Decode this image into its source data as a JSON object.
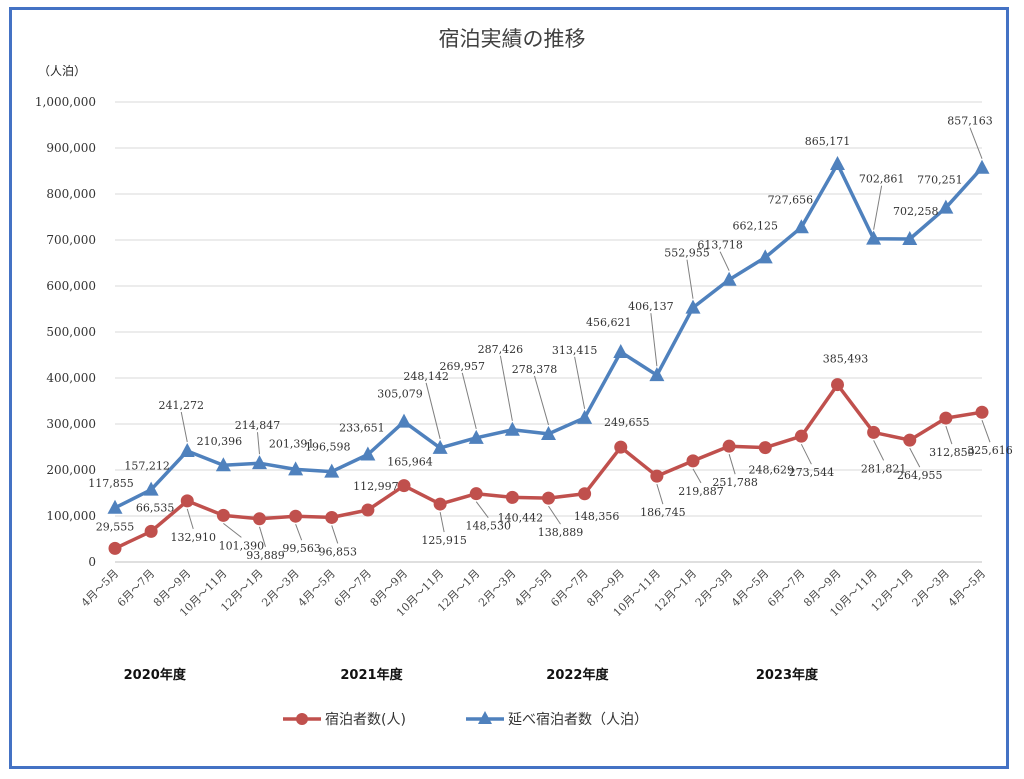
{
  "chart_data": {
    "type": "line",
    "title": "宿泊実績の推移",
    "ylabel": "（人泊）",
    "ylim": [
      0,
      1000000
    ],
    "yticks": [
      "0",
      "100,000",
      "200,000",
      "300,000",
      "400,000",
      "500,000",
      "600,000",
      "700,000",
      "800,000",
      "900,000",
      "1,000,000"
    ],
    "grid": true,
    "legend_position": "bottom",
    "categories": [
      "4月～5月",
      "6月～7月",
      "8月～9月",
      "10月～11月",
      "12月～1月",
      "2月～3月",
      "4月～5月",
      "6月～7月",
      "8月～9月",
      "10月～11月",
      "12月～1月",
      "2月～3月",
      "4月～5月",
      "6月～7月",
      "8月～9月",
      "10月～11月",
      "12月～1月",
      "2月～3月",
      "4月～5月",
      "6月～7月",
      "8月～9月",
      "10月～11月",
      "12月～1月",
      "2月～3月",
      "4月～5月"
    ],
    "fiscal_years": [
      "2020年度",
      "2021年度",
      "2022年度",
      "2023年度"
    ],
    "series": [
      {
        "name": "宿泊者数(人)",
        "color": "#c0504d",
        "marker": "circle",
        "values": [
          29555,
          66535,
          132910,
          101390,
          93889,
          99563,
          96853,
          112997,
          165964,
          125915,
          148530,
          140442,
          138889,
          148356,
          249655,
          186745,
          219887,
          251788,
          248629,
          273544,
          385493,
          281821,
          264955,
          312859,
          325616
        ],
        "labels": [
          "29,555",
          "66,535",
          "132,910",
          "101,390",
          "93,889",
          "99,563",
          "96,853",
          "112,997",
          "165,964",
          "125,915",
          "148,530",
          "140,442",
          "138,889",
          "148,356",
          "249,655",
          "186,745",
          "219,887",
          "251,788",
          "248,629",
          "273,544",
          "385,493",
          "281,821",
          "264,955",
          "312,859",
          "325,616"
        ]
      },
      {
        "name": "延べ宿泊者数（人泊）",
        "color": "#4f81bd",
        "marker": "triangle",
        "values": [
          117855,
          157212,
          241272,
          210396,
          214847,
          201391,
          196598,
          233651,
          305079,
          248142,
          269957,
          287426,
          278378,
          313415,
          456621,
          406137,
          552955,
          613718,
          662125,
          727656,
          865171,
          702861,
          702258,
          770251,
          857163
        ],
        "labels": [
          "117,855",
          "157,212",
          "241,272",
          "210,396",
          "214,847",
          "201,391",
          "196,598",
          "233,651",
          "305,079",
          "248,142",
          "269,957",
          "287,426",
          "278,378",
          "313,415",
          "456,621",
          "406,137",
          "552,955",
          "613,718",
          "662,125",
          "727,656",
          "865,171",
          "702,861",
          "702,258",
          "770,251",
          "857,163"
        ]
      }
    ]
  }
}
